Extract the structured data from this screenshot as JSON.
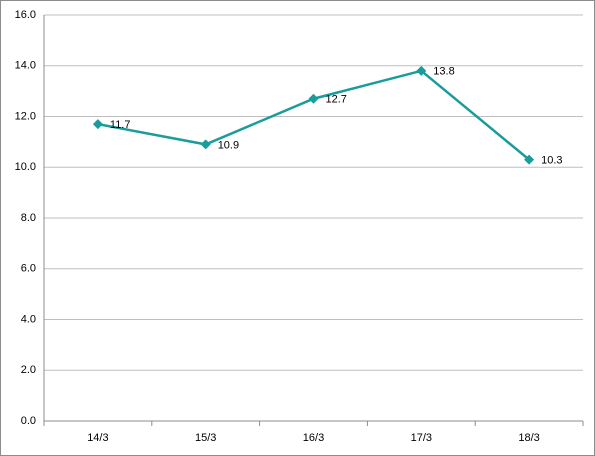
{
  "chart_data": {
    "type": "line",
    "categories": [
      "14/3",
      "15/3",
      "16/3",
      "17/3",
      "18/3"
    ],
    "values": [
      11.7,
      10.9,
      12.7,
      13.8,
      10.3
    ],
    "value_labels": [
      "11.7",
      "10.9",
      "12.7",
      "13.8",
      "10.3"
    ],
    "color": "#1a9c9c",
    "ylim": [
      0,
      16
    ],
    "yticks": [
      {
        "value": 0,
        "label": "0.0"
      },
      {
        "value": 2,
        "label": "2.0"
      },
      {
        "value": 4,
        "label": "4.0"
      },
      {
        "value": 6,
        "label": "6.0"
      },
      {
        "value": 8,
        "label": "8.0"
      },
      {
        "value": 10,
        "label": "10.0"
      },
      {
        "value": 12,
        "label": "12.0"
      },
      {
        "value": 14,
        "label": "14.0"
      },
      {
        "value": 16,
        "label": "16.0"
      }
    ],
    "grid": true
  }
}
